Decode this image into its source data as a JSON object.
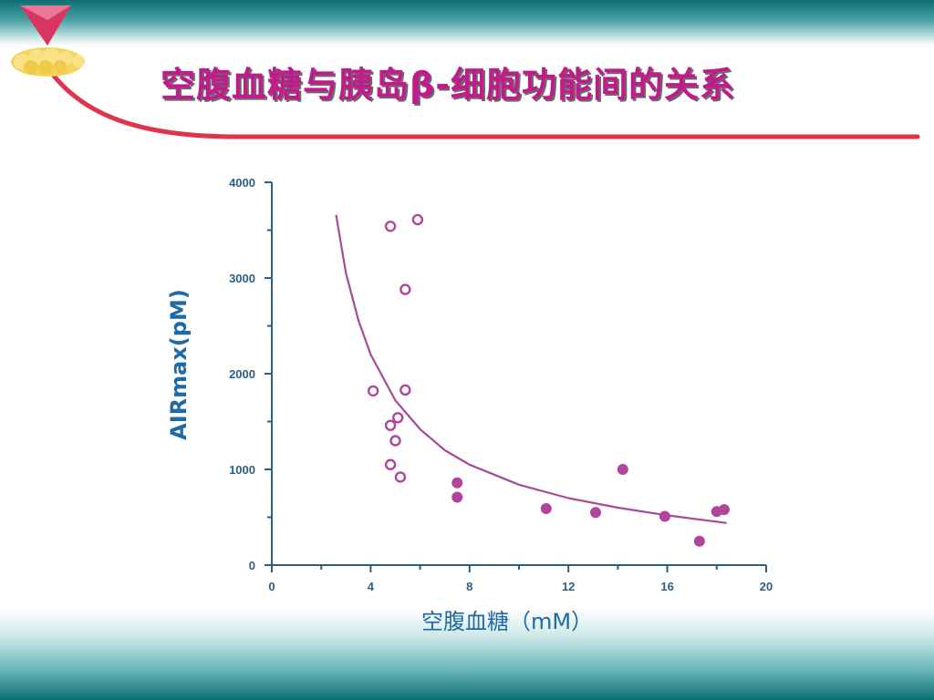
{
  "slide": {
    "title": "空腹血糖与胰岛β-细胞功能间的关系"
  },
  "colors": {
    "title": "#c21a8c",
    "accent_line": "#e0334d",
    "axis": "#2c5f86",
    "axis_title": "#1f6aa5",
    "marker": "#b0459b",
    "curve": "#a84a98",
    "band": "#0d6e72"
  },
  "icons": {
    "logo": "pancreas-icon",
    "marker": "triangle-down-icon"
  },
  "chart_data": {
    "type": "scatter",
    "title": "",
    "xlabel": "空腹血糖（mM）",
    "ylabel": "AIRmax(pM)",
    "xlim": [
      0,
      20
    ],
    "ylim": [
      0,
      4000
    ],
    "x_ticks": [
      "0",
      "4",
      "8",
      "12",
      "16",
      "20"
    ],
    "y_ticks": [
      "0",
      "1000",
      "2000",
      "3000",
      "4000"
    ],
    "grid": false,
    "series": [
      {
        "marker": "open-circle",
        "points": [
          [
            4.8,
            3540
          ],
          [
            5.9,
            3610
          ],
          [
            5.4,
            2880
          ],
          [
            4.1,
            1820
          ],
          [
            5.4,
            1830
          ],
          [
            5.1,
            1540
          ],
          [
            4.8,
            1460
          ],
          [
            5.0,
            1300
          ],
          [
            4.8,
            1050
          ],
          [
            5.2,
            920
          ]
        ]
      },
      {
        "marker": "filled-circle",
        "points": [
          [
            7.5,
            860
          ],
          [
            7.5,
            710
          ],
          [
            11.1,
            590
          ],
          [
            13.1,
            550
          ],
          [
            14.2,
            1000
          ],
          [
            15.9,
            510
          ],
          [
            17.3,
            250
          ],
          [
            18.0,
            560
          ],
          [
            18.3,
            580
          ]
        ]
      }
    ],
    "fit_curve": {
      "type": "power",
      "points": [
        [
          2.6,
          3660
        ],
        [
          3.0,
          3050
        ],
        [
          3.5,
          2560
        ],
        [
          4.0,
          2200
        ],
        [
          5.0,
          1720
        ],
        [
          6.0,
          1420
        ],
        [
          7.0,
          1200
        ],
        [
          8.0,
          1050
        ],
        [
          10.0,
          840
        ],
        [
          12.0,
          700
        ],
        [
          14.0,
          600
        ],
        [
          16.0,
          520
        ],
        [
          18.4,
          440
        ]
      ]
    }
  }
}
